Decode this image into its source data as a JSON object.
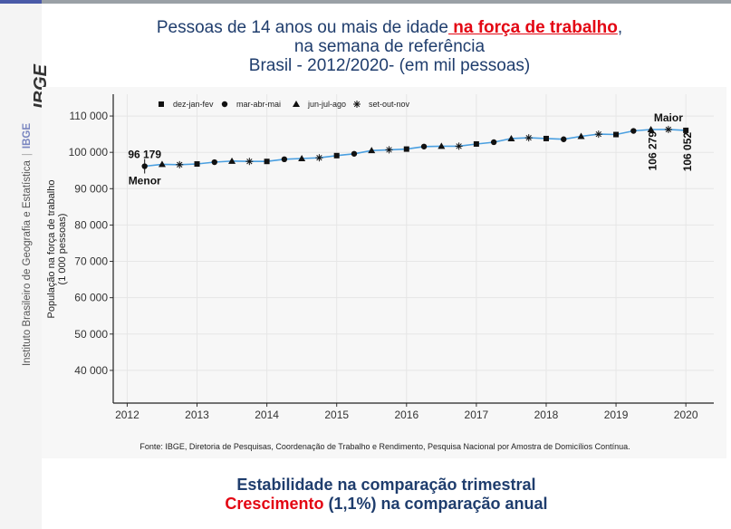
{
  "brand": {
    "logo": "IBGE",
    "name": "Instituto Brasileiro de Geografia e Estatística",
    "short": "IBGE"
  },
  "title": {
    "line1_pre": "Pessoas de 14 anos ou mais de idade",
    "line1_highlight": " na força de trabalho",
    "line1_post": ",",
    "line2": "na semana de referência",
    "line3": "Brasil - 2012/2020- (em mil pessoas)"
  },
  "source": "Fonte: IBGE, Diretoria de Pesquisas, Coordenação de Trabalho e Rendimento, Pesquisa Nacional por Amostra de Domicílios Contínua.",
  "footer": {
    "line1": "Estabilidade na comparação trimestral",
    "line2_red": "Crescimento",
    "line2_rest": " (1,1%) na comparação anual"
  },
  "colors": {
    "line": "#4a9fe0",
    "title": "#1f3d6d",
    "highlight": "#e30613"
  },
  "chart_data": {
    "type": "line",
    "ylabel_line1": "População na força de trabalho",
    "ylabel_line2": "(1 000 pessoas)",
    "xlim": [
      2011.8,
      2020.4
    ],
    "ylim": [
      31000,
      116000
    ],
    "xticks": [
      2012,
      2013,
      2014,
      2015,
      2016,
      2017,
      2018,
      2019,
      2020
    ],
    "xtick_labels": [
      "2012",
      "2013",
      "2014",
      "2015",
      "2016",
      "2017",
      "2018",
      "2019",
      "2020"
    ],
    "yticks": [
      40000,
      50000,
      60000,
      70000,
      80000,
      90000,
      100000,
      110000
    ],
    "ytick_labels": [
      "40 000",
      "50 000",
      "60 000",
      "70 000",
      "80 000",
      "90 000",
      "100 000",
      "110 000"
    ],
    "legend_position": "top-left",
    "legend": [
      {
        "label": "dez-jan-fev",
        "marker": "square"
      },
      {
        "label": "mar-abr-mai",
        "marker": "circle"
      },
      {
        "label": "jun-jul-ago",
        "marker": "triangle"
      },
      {
        "label": "set-out-nov",
        "marker": "asterisk"
      }
    ],
    "points": [
      {
        "x": 2012.25,
        "y": 96179,
        "m": "circle"
      },
      {
        "x": 2012.5,
        "y": 96700,
        "m": "triangle"
      },
      {
        "x": 2012.75,
        "y": 96600,
        "m": "asterisk"
      },
      {
        "x": 2013.0,
        "y": 96800,
        "m": "square"
      },
      {
        "x": 2013.25,
        "y": 97300,
        "m": "circle"
      },
      {
        "x": 2013.5,
        "y": 97600,
        "m": "triangle"
      },
      {
        "x": 2013.75,
        "y": 97500,
        "m": "asterisk"
      },
      {
        "x": 2014.0,
        "y": 97500,
        "m": "square"
      },
      {
        "x": 2014.25,
        "y": 98100,
        "m": "circle"
      },
      {
        "x": 2014.5,
        "y": 98300,
        "m": "triangle"
      },
      {
        "x": 2014.75,
        "y": 98500,
        "m": "asterisk"
      },
      {
        "x": 2015.0,
        "y": 99100,
        "m": "square"
      },
      {
        "x": 2015.25,
        "y": 99600,
        "m": "circle"
      },
      {
        "x": 2015.5,
        "y": 100500,
        "m": "triangle"
      },
      {
        "x": 2015.75,
        "y": 100700,
        "m": "asterisk"
      },
      {
        "x": 2016.0,
        "y": 100900,
        "m": "square"
      },
      {
        "x": 2016.25,
        "y": 101600,
        "m": "circle"
      },
      {
        "x": 2016.5,
        "y": 101700,
        "m": "triangle"
      },
      {
        "x": 2016.75,
        "y": 101700,
        "m": "asterisk"
      },
      {
        "x": 2017.0,
        "y": 102300,
        "m": "square"
      },
      {
        "x": 2017.25,
        "y": 102800,
        "m": "circle"
      },
      {
        "x": 2017.5,
        "y": 103800,
        "m": "triangle"
      },
      {
        "x": 2017.75,
        "y": 104000,
        "m": "asterisk"
      },
      {
        "x": 2018.0,
        "y": 103800,
        "m": "square"
      },
      {
        "x": 2018.25,
        "y": 103600,
        "m": "circle"
      },
      {
        "x": 2018.5,
        "y": 104400,
        "m": "triangle"
      },
      {
        "x": 2018.75,
        "y": 105000,
        "m": "asterisk"
      },
      {
        "x": 2019.0,
        "y": 104900,
        "m": "square"
      },
      {
        "x": 2019.25,
        "y": 105900,
        "m": "circle"
      },
      {
        "x": 2019.5,
        "y": 106279,
        "m": "triangle"
      },
      {
        "x": 2019.75,
        "y": 106300,
        "m": "asterisk"
      },
      {
        "x": 2020.0,
        "y": 106052,
        "m": "square"
      }
    ],
    "annotations": [
      {
        "text": "96 179",
        "x": 2012.25,
        "y": 96179,
        "pos": "above"
      },
      {
        "text": "Menor",
        "x": 2012.25,
        "y": 96179,
        "pos": "below"
      },
      {
        "text": "Maior",
        "x": 2019.75,
        "y": 106300,
        "pos": "above"
      },
      {
        "text": "106 279",
        "x": 2019.5,
        "y": 106279,
        "pos": "vertical"
      },
      {
        "text": "106 052",
        "x": 2020.0,
        "y": 106052,
        "pos": "vertical"
      }
    ]
  }
}
